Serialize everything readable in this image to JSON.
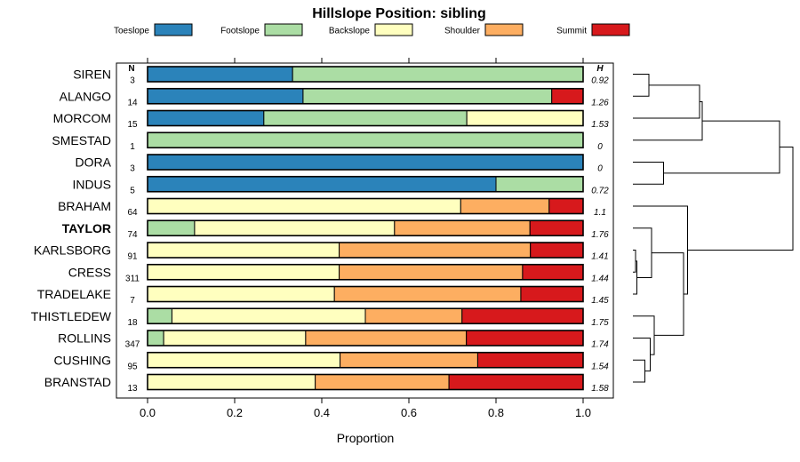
{
  "chart_data": {
    "type": "bar",
    "stacked": true,
    "orientation": "horizontal",
    "title": "Hillslope Position: sibling",
    "xlabel": "Proportion",
    "ylabel": "",
    "xlim": [
      0,
      1
    ],
    "x_ticks": [
      "0.0",
      "0.2",
      "0.4",
      "0.6",
      "0.8",
      "1.0"
    ],
    "legend_position": "top",
    "n_header": "N",
    "h_header": "H",
    "highlight": "TAYLOR",
    "series": [
      {
        "name": "Toeslope",
        "color": "#2B83BA"
      },
      {
        "name": "Footslope",
        "color": "#ABDDA4"
      },
      {
        "name": "Backslope",
        "color": "#FFFFBF"
      },
      {
        "name": "Shoulder",
        "color": "#FDAE61"
      },
      {
        "name": "Summit",
        "color": "#D7191C"
      }
    ],
    "rows": [
      {
        "name": "SIREN",
        "n": "3",
        "h": "0.92",
        "values": [
          0.333,
          0.667,
          0,
          0,
          0
        ]
      },
      {
        "name": "ALANGO",
        "n": "14",
        "h": "1.26",
        "values": [
          0.357,
          0.571,
          0,
          0,
          0.072
        ]
      },
      {
        "name": "MORCOM",
        "n": "15",
        "h": "1.53",
        "values": [
          0.267,
          0.466,
          0.267,
          0,
          0
        ]
      },
      {
        "name": "SMESTAD",
        "n": "1",
        "h": "0",
        "values": [
          0,
          1.0,
          0,
          0,
          0
        ]
      },
      {
        "name": "DORA",
        "n": "3",
        "h": "0",
        "values": [
          1.0,
          0,
          0,
          0,
          0
        ]
      },
      {
        "name": "INDUS",
        "n": "5",
        "h": "0.72",
        "values": [
          0.8,
          0.2,
          0,
          0,
          0
        ]
      },
      {
        "name": "BRAHAM",
        "n": "64",
        "h": "1.1",
        "values": [
          0,
          0,
          0.719,
          0.203,
          0.078
        ]
      },
      {
        "name": "TAYLOR",
        "n": "74",
        "h": "1.76",
        "values": [
          0,
          0.108,
          0.459,
          0.311,
          0.122
        ]
      },
      {
        "name": "KARLSBORG",
        "n": "91",
        "h": "1.41",
        "values": [
          0,
          0,
          0.44,
          0.439,
          0.121
        ]
      },
      {
        "name": "CRESS",
        "n": "311",
        "h": "1.44",
        "values": [
          0,
          0,
          0.44,
          0.421,
          0.139
        ]
      },
      {
        "name": "TRADELAKE",
        "n": "7",
        "h": "1.45",
        "values": [
          0,
          0,
          0.429,
          0.428,
          0.143
        ]
      },
      {
        "name": "THISTLEDEW",
        "n": "18",
        "h": "1.75",
        "values": [
          0,
          0.056,
          0.444,
          0.222,
          0.278
        ]
      },
      {
        "name": "ROLLINS",
        "n": "347",
        "h": "1.74",
        "values": [
          0,
          0.037,
          0.326,
          0.369,
          0.268
        ]
      },
      {
        "name": "CUSHING",
        "n": "95",
        "h": "1.54",
        "values": [
          0,
          0,
          0.442,
          0.316,
          0.242
        ]
      },
      {
        "name": "BRANSTAD",
        "n": "13",
        "h": "1.58",
        "values": [
          0,
          0,
          0.385,
          0.307,
          0.308
        ]
      }
    ],
    "dendrogram": {
      "leaf_order": [
        "SIREN",
        "ALANGO",
        "MORCOM",
        "SMESTAD",
        "DORA",
        "INDUS",
        "BRAHAM",
        "TAYLOR",
        "KARLSBORG",
        "CRESS",
        "TRADELAKE",
        "THISTLEDEW",
        "ROLLINS",
        "CUSHING",
        "BRANSTAD"
      ],
      "merges": [
        {
          "left": "SIREN",
          "right": "ALANGO",
          "height": 0.12
        },
        {
          "left": "m0",
          "right": "MORCOM",
          "height": 0.5
        },
        {
          "left": "m1",
          "right": "SMESTAD",
          "height": 0.52
        },
        {
          "left": "DORA",
          "right": "INDUS",
          "height": 0.23
        },
        {
          "left": "KARLSBORG",
          "right": "CRESS",
          "height": 0.02
        },
        {
          "left": "m4",
          "right": "TRADELAKE",
          "height": 0.03
        },
        {
          "left": "TAYLOR",
          "right": "m5",
          "height": 0.14
        },
        {
          "left": "CUSHING",
          "right": "BRANSTAD",
          "height": 0.09
        },
        {
          "left": "ROLLINS",
          "right": "m7",
          "height": 0.13
        },
        {
          "left": "THISTLEDEW",
          "right": "m8",
          "height": 0.16
        },
        {
          "left": "m6",
          "right": "m9",
          "height": 0.38
        },
        {
          "left": "BRAHAM",
          "right": "m10",
          "height": 0.41
        },
        {
          "left": "m2",
          "right": "m3",
          "height": 1.1
        },
        {
          "left": "m12",
          "right": "m11",
          "height": 1.2
        }
      ]
    }
  }
}
